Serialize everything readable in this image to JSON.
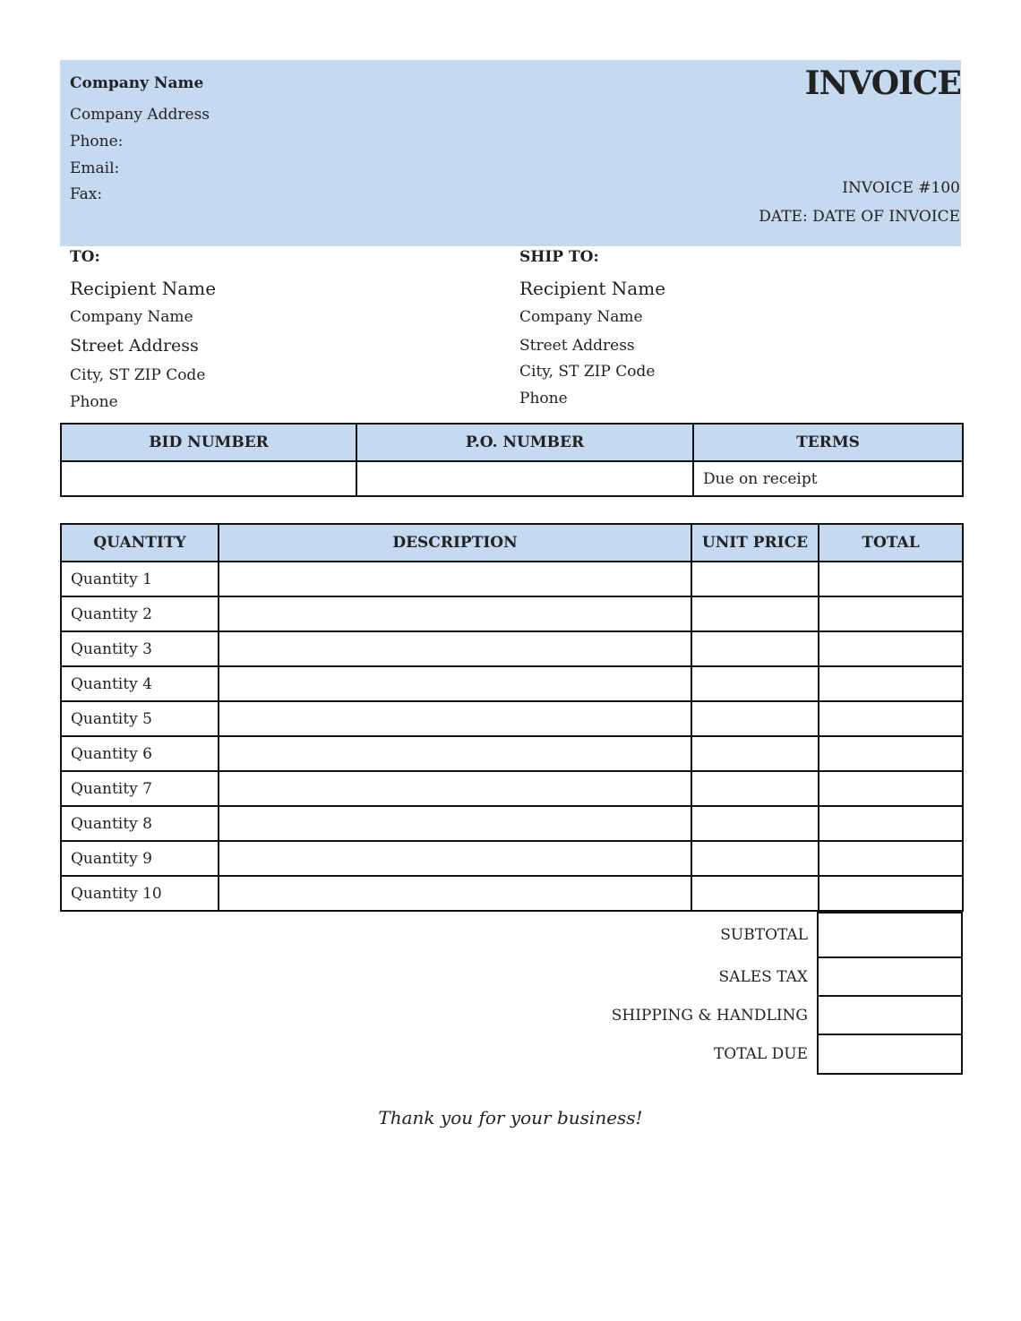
{
  "header": {
    "company_name": "Company Name",
    "company_address": "Company Address",
    "phone": "Phone:",
    "email": "Email:",
    "fax": "Fax:",
    "title": "INVOICE",
    "invoice_number": "INVOICE #100",
    "date": "DATE: DATE OF INVOICE",
    "band_color": "#c5d9f1"
  },
  "bill_to": {
    "label": "TO:",
    "lines": [
      "Recipient Name",
      "Company Name",
      "Street Address",
      "City, ST ZIP Code",
      "Phone"
    ]
  },
  "ship_to": {
    "label": "SHIP TO:",
    "lines": [
      "Recipient Name",
      "Company Name",
      "Street Address",
      "City, ST ZIP Code",
      "Phone"
    ]
  },
  "order_info": {
    "headers": [
      "BID NUMBER",
      "P.O. NUMBER",
      "TERMS"
    ],
    "values": [
      "",
      "",
      "Due on receipt"
    ]
  },
  "items": {
    "headers": [
      "QUANTITY",
      "DESCRIPTION",
      "UNIT PRICE",
      "TOTAL"
    ],
    "rows": [
      {
        "quantity": "Quantity 1",
        "description": "",
        "unit_price": "",
        "total": ""
      },
      {
        "quantity": "Quantity 2",
        "description": "",
        "unit_price": "",
        "total": ""
      },
      {
        "quantity": "Quantity 3",
        "description": "",
        "unit_price": "",
        "total": ""
      },
      {
        "quantity": "Quantity 4",
        "description": "",
        "unit_price": "",
        "total": ""
      },
      {
        "quantity": "Quantity 5",
        "description": "",
        "unit_price": "",
        "total": ""
      },
      {
        "quantity": "Quantity 6",
        "description": "",
        "unit_price": "",
        "total": ""
      },
      {
        "quantity": "Quantity 7",
        "description": "",
        "unit_price": "",
        "total": ""
      },
      {
        "quantity": "Quantity 8",
        "description": "",
        "unit_price": "",
        "total": ""
      },
      {
        "quantity": "Quantity 9",
        "description": "",
        "unit_price": "",
        "total": ""
      },
      {
        "quantity": "Quantity 10",
        "description": "",
        "unit_price": "",
        "total": ""
      }
    ]
  },
  "summary": [
    {
      "label": "SUBTOTAL",
      "value": ""
    },
    {
      "label": "SALES TAX",
      "value": ""
    },
    {
      "label": "SHIPPING & HANDLING",
      "value": ""
    },
    {
      "label": "TOTAL DUE",
      "value": ""
    }
  ],
  "footer": {
    "thanks": "Thank you for your business!"
  }
}
